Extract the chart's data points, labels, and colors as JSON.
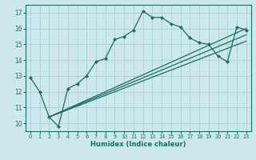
{
  "xlabel": "Humidex (Indice chaleur)",
  "xlim": [
    -0.5,
    23.5
  ],
  "ylim": [
    9.5,
    17.5
  ],
  "xticks": [
    0,
    1,
    2,
    3,
    4,
    5,
    6,
    7,
    8,
    9,
    10,
    11,
    12,
    13,
    14,
    15,
    16,
    17,
    18,
    19,
    20,
    21,
    22,
    23
  ],
  "yticks": [
    10,
    11,
    12,
    13,
    14,
    15,
    16,
    17
  ],
  "bg_color": "#cce8ec",
  "line_color": "#1a6e64",
  "grid_color": "#9ecdd4",
  "line1_x": [
    0,
    1,
    2,
    3,
    4,
    5,
    6,
    7,
    8,
    9,
    10,
    11,
    12,
    13,
    14,
    15,
    16,
    17,
    18,
    19,
    20,
    21,
    22,
    23
  ],
  "line1_y": [
    12.9,
    12.0,
    10.4,
    9.8,
    12.2,
    12.5,
    13.0,
    13.9,
    14.1,
    15.3,
    15.5,
    15.9,
    17.1,
    16.7,
    16.7,
    16.3,
    16.1,
    15.4,
    15.1,
    15.0,
    14.25,
    13.9,
    16.1,
    15.9
  ],
  "line2_x": [
    2,
    23
  ],
  "line2_y": [
    10.4,
    16.0
  ],
  "line3_x": [
    2,
    23
  ],
  "line3_y": [
    10.4,
    15.6
  ],
  "line4_x": [
    2,
    23
  ],
  "line4_y": [
    10.4,
    15.2
  ],
  "marker_size": 2.5,
  "linewidth": 0.9
}
